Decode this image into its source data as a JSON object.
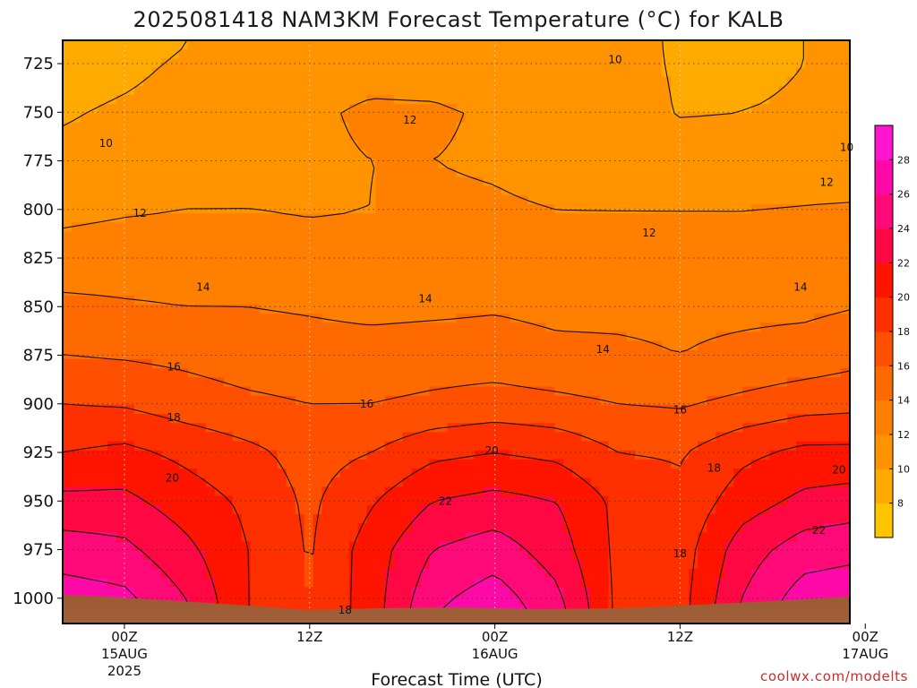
{
  "chart_data": {
    "type": "heatmap",
    "title": "2025081418 NAM3KM Forecast Temperature (°C) for KALB",
    "xlabel": "Forecast Time (UTC)",
    "credit": "coolwx.com/modelts",
    "y_axis": {
      "ticks": [
        725,
        750,
        775,
        800,
        825,
        850,
        875,
        900,
        925,
        950,
        975,
        1000
      ],
      "range_hPa": [
        713,
        1013
      ],
      "reversed": true,
      "grid": true
    },
    "x_axis": {
      "range_hours": [
        -4,
        47
      ],
      "ticks": [
        {
          "hour": 0,
          "label": "00Z",
          "date": "15AUG",
          "year": "2025"
        },
        {
          "hour": 12,
          "label": "12Z",
          "date": "",
          "year": ""
        },
        {
          "hour": 24,
          "label": "00Z",
          "date": "16AUG",
          "year": ""
        },
        {
          "hour": 36,
          "label": "12Z",
          "date": "",
          "year": ""
        },
        {
          "hour": 48,
          "label": "00Z",
          "date": "17AUG",
          "year": ""
        }
      ],
      "grid": true
    },
    "colorbar": {
      "ticks": [
        8,
        10,
        12,
        14,
        16,
        18,
        20,
        22,
        24,
        26,
        28
      ],
      "colors": [
        "#ffc400",
        "#ffaa00",
        "#ff9400",
        "#ff7f00",
        "#ff6a00",
        "#ff5000",
        "#ff3000",
        "#ff1400",
        "#ff0844",
        "#ff0a78",
        "#ff0aa8",
        "#ff14d0"
      ]
    },
    "x_hours": [
      -4,
      0,
      4,
      8,
      12,
      16,
      20,
      24,
      28,
      32,
      36,
      40,
      44,
      48
    ],
    "pressure_levels": [
      715,
      725,
      750,
      775,
      800,
      825,
      850,
      875,
      900,
      925,
      950,
      975,
      1000,
      1010
    ],
    "temperature_c": [
      [
        8.5,
        9.0,
        10.0,
        10.5,
        11.0,
        11.2,
        11.0,
        10.8,
        10.6,
        10.5,
        9.8,
        9.8,
        10.0,
        10.2
      ],
      [
        9.0,
        9.5,
        10.3,
        10.8,
        11.3,
        11.5,
        11.3,
        11.0,
        10.8,
        10.6,
        9.8,
        9.8,
        10.0,
        10.2
      ],
      [
        9.8,
        10.3,
        10.8,
        11.2,
        11.8,
        12.2,
        12.2,
        11.8,
        11.2,
        10.8,
        9.9,
        10.0,
        10.1,
        10.3
      ],
      [
        10.5,
        10.8,
        11.2,
        11.5,
        11.8,
        12.0,
        12.0,
        11.8,
        11.4,
        11.0,
        10.8,
        10.7,
        10.9,
        11.0
      ],
      [
        11.5,
        11.8,
        12.0,
        12.0,
        11.9,
        12.0,
        12.3,
        12.2,
        12.0,
        12.0,
        12.0,
        12.0,
        12.1,
        12.2
      ],
      [
        12.8,
        13.0,
        13.1,
        12.8,
        12.5,
        12.5,
        12.8,
        12.8,
        12.5,
        12.5,
        12.5,
        12.5,
        12.7,
        12.8
      ],
      [
        14.5,
        14.2,
        14.0,
        14.0,
        13.8,
        13.5,
        13.6,
        13.8,
        13.5,
        13.6,
        13.6,
        13.6,
        13.6,
        14.0
      ],
      [
        16.0,
        15.8,
        15.5,
        15.0,
        14.8,
        14.8,
        15.0,
        15.0,
        14.5,
        14.3,
        14.0,
        14.4,
        14.8,
        15.5
      ],
      [
        18.0,
        17.8,
        17.0,
        16.4,
        16.0,
        16.0,
        16.4,
        16.8,
        16.5,
        16.0,
        15.8,
        16.5,
        17.2,
        17.5
      ],
      [
        20.0,
        20.5,
        19.5,
        18.5,
        17.2,
        18.0,
        19.5,
        20.0,
        19.5,
        18.0,
        17.8,
        19.5,
        20.5,
        20.5
      ],
      [
        22.5,
        22.5,
        21.0,
        19.6,
        17.6,
        19.8,
        22.0,
        22.6,
        22.0,
        19.5,
        18.5,
        21.0,
        22.5,
        23.0
      ],
      [
        25.0,
        24.5,
        22.5,
        20.0,
        17.8,
        21.0,
        24.0,
        25.0,
        23.0,
        19.5,
        19.0,
        23.0,
        25.0,
        25.5
      ],
      [
        27.0,
        26.5,
        24.0,
        20.0,
        18.0,
        21.0,
        25.5,
        27.0,
        24.5,
        19.5,
        19.2,
        24.0,
        27.0,
        27.5
      ],
      [
        27.5,
        27.0,
        24.5,
        20.0,
        18.0,
        21.0,
        26.0,
        27.5,
        25.0,
        19.5,
        19.2,
        24.5,
        27.5,
        28.0
      ]
    ],
    "contour_labels": [
      {
        "text": "10",
        "hour": -1.2,
        "p": 766
      },
      {
        "text": "10",
        "hour": 31.8,
        "p": 723
      },
      {
        "text": "10",
        "hour": 46.8,
        "p": 768
      },
      {
        "text": "12",
        "hour": 1.0,
        "p": 802
      },
      {
        "text": "12",
        "hour": 18.5,
        "p": 754
      },
      {
        "text": "12",
        "hour": 34.0,
        "p": 812
      },
      {
        "text": "12",
        "hour": 45.5,
        "p": 786
      },
      {
        "text": "14",
        "hour": 5.1,
        "p": 840
      },
      {
        "text": "14",
        "hour": 19.5,
        "p": 846
      },
      {
        "text": "14",
        "hour": 31.0,
        "p": 872
      },
      {
        "text": "14",
        "hour": 43.8,
        "p": 840
      },
      {
        "text": "16",
        "hour": 3.2,
        "p": 881
      },
      {
        "text": "16",
        "hour": 15.7,
        "p": 900
      },
      {
        "text": "16",
        "hour": 36.0,
        "p": 903
      },
      {
        "text": "18",
        "hour": 3.2,
        "p": 907
      },
      {
        "text": "18",
        "hour": 14.3,
        "p": 1006
      },
      {
        "text": "18",
        "hour": 36.0,
        "p": 977
      },
      {
        "text": "18",
        "hour": 38.2,
        "p": 933
      },
      {
        "text": "20",
        "hour": 3.1,
        "p": 938
      },
      {
        "text": "20",
        "hour": 23.8,
        "p": 924
      },
      {
        "text": "20",
        "hour": 46.3,
        "p": 934
      },
      {
        "text": "22",
        "hour": 20.8,
        "p": 950
      },
      {
        "text": "22",
        "hour": 45.0,
        "p": 965
      }
    ]
  }
}
